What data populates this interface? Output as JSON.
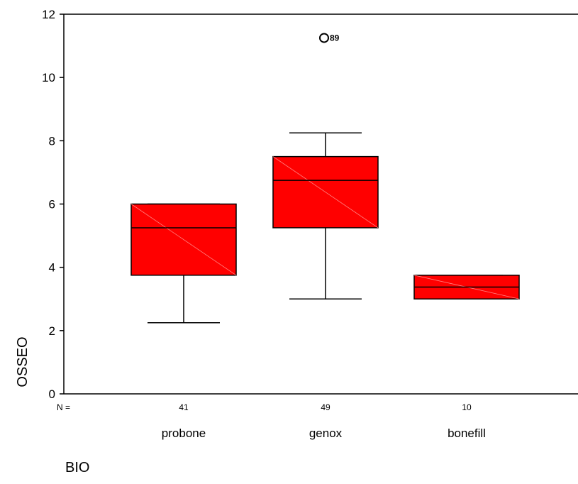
{
  "chart_data": {
    "type": "boxplot",
    "ylabel": "OSSEO",
    "xlabel": "BIO",
    "ylim": [
      0,
      12
    ],
    "yticks": [
      0,
      2,
      4,
      6,
      8,
      10,
      12
    ],
    "n_label": "N =",
    "box_color": "#ff0000",
    "categories": [
      "probone",
      "genox",
      "bonefill"
    ],
    "n": [
      "41",
      "49",
      "10"
    ],
    "boxes": [
      {
        "category": "probone",
        "whisker_low": 2.25,
        "q1": 3.75,
        "median": 5.25,
        "q3": 6.0,
        "whisker_high": 6.0,
        "outliers": []
      },
      {
        "category": "genox",
        "whisker_low": 3.0,
        "q1": 5.25,
        "median": 6.75,
        "q3": 7.5,
        "whisker_high": 8.25,
        "outliers": [
          {
            "value": 11.25,
            "label": "89"
          }
        ]
      },
      {
        "category": "bonefill",
        "whisker_low": 3.0,
        "q1": 3.0,
        "median": 3.375,
        "q3": 3.75,
        "whisker_high": 3.75,
        "outliers": []
      }
    ]
  }
}
